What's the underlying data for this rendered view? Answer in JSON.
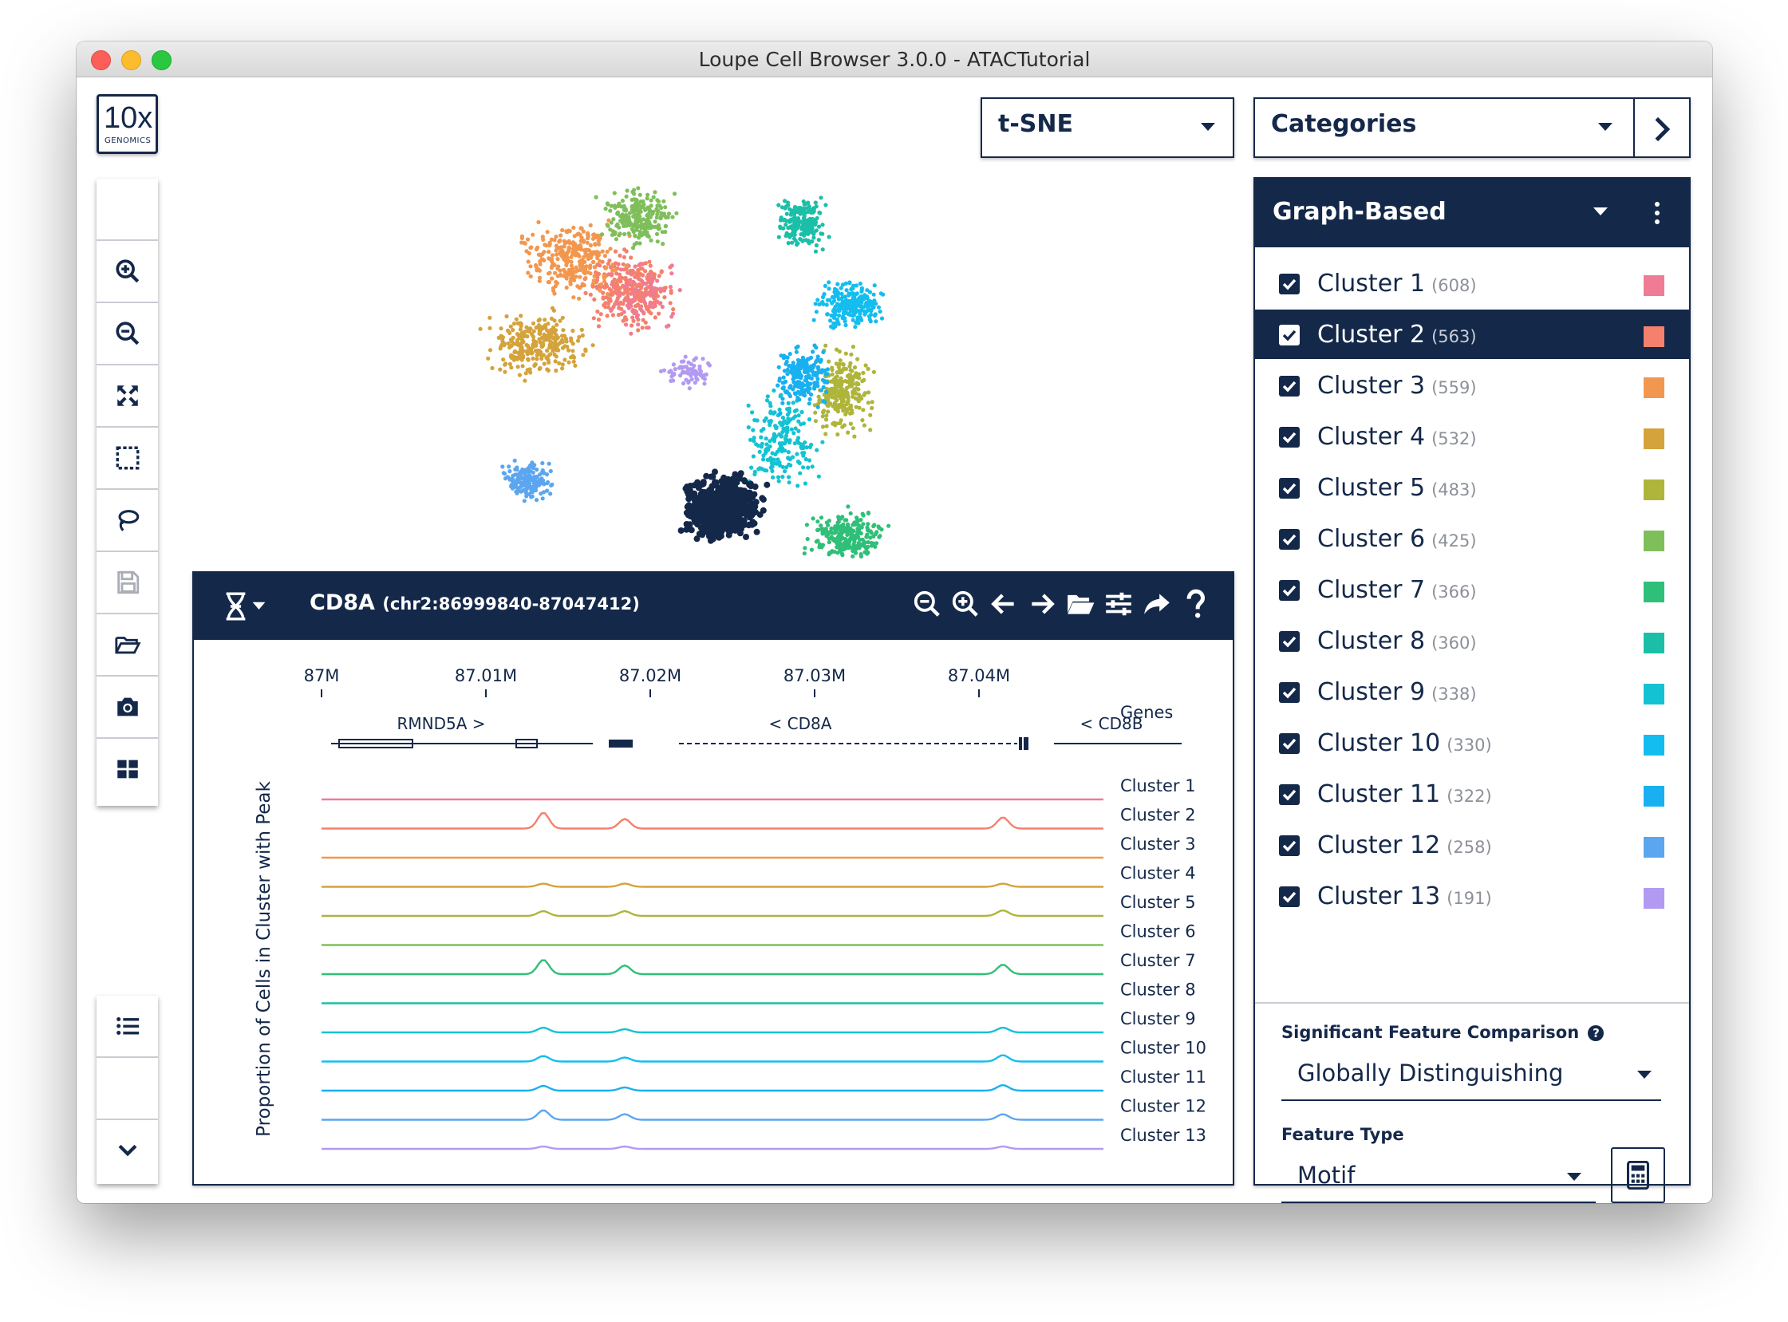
{
  "window": {
    "title": "Loupe Cell Browser 3.0.0 - ATACTutorial"
  },
  "logo": {
    "main": "10x",
    "sub": "GENOMICS"
  },
  "toolbar": {
    "tools": [
      {
        "name": "pointer-icon"
      },
      {
        "name": "zoom-in-icon"
      },
      {
        "name": "zoom-out-icon"
      },
      {
        "name": "fit-view-icon"
      },
      {
        "name": "box-select-icon"
      },
      {
        "name": "lasso-icon"
      },
      {
        "name": "save-icon"
      },
      {
        "name": "open-folder-icon"
      },
      {
        "name": "camera-icon"
      },
      {
        "name": "layout-grid-icon"
      }
    ],
    "bottom": [
      {
        "name": "list-icon"
      },
      {
        "name": "area-chart-icon"
      },
      {
        "name": "chevron-down-icon"
      }
    ]
  },
  "projection": {
    "selected": "t-SNE"
  },
  "category_select": {
    "selected": "Categories"
  },
  "cluster_panel": {
    "title": "Graph-Based",
    "clusters": [
      {
        "label": "Cluster 1",
        "count": "(608)",
        "color": "#f07b95",
        "selected": false
      },
      {
        "label": "Cluster 2",
        "count": "(563)",
        "color": "#f4806d",
        "selected": true
      },
      {
        "label": "Cluster 3",
        "count": "(559)",
        "color": "#f2974f",
        "selected": false
      },
      {
        "label": "Cluster 4",
        "count": "(532)",
        "color": "#d4a33b",
        "selected": false
      },
      {
        "label": "Cluster 5",
        "count": "(483)",
        "color": "#aeb53a",
        "selected": false
      },
      {
        "label": "Cluster 6",
        "count": "(425)",
        "color": "#7fbf5b",
        "selected": false
      },
      {
        "label": "Cluster 7",
        "count": "(366)",
        "color": "#2fbf78",
        "selected": false
      },
      {
        "label": "Cluster 8",
        "count": "(360)",
        "color": "#1bbfa8",
        "selected": false
      },
      {
        "label": "Cluster 9",
        "count": "(338)",
        "color": "#13c3d3",
        "selected": false
      },
      {
        "label": "Cluster 10",
        "count": "(330)",
        "color": "#14bdf0",
        "selected": false
      },
      {
        "label": "Cluster 11",
        "count": "(322)",
        "color": "#18b0f0",
        "selected": false
      },
      {
        "label": "Cluster 12",
        "count": "(258)",
        "color": "#5ca6ef",
        "selected": false
      },
      {
        "label": "Cluster 13",
        "count": "(191)",
        "color": "#b29af2",
        "selected": false
      }
    ]
  },
  "feature_comparison": {
    "label": "Significant Feature Comparison",
    "help_icon": "?",
    "value": "Globally Distinguishing",
    "type_label": "Feature Type",
    "type_value": "Motif"
  },
  "track": {
    "gene": "CD8A",
    "location": "(chr2:86999840-87047412)",
    "x_ticks": [
      "87M",
      "87.01M",
      "87.02M",
      "87.03M",
      "87.04M"
    ],
    "y_label": "Proportion of Cells in Cluster with Peak",
    "genes_label": "Genes",
    "genes": [
      {
        "label": "RMND5A >"
      },
      {
        "label": "< CD8A"
      },
      {
        "label": "< CD8B"
      }
    ],
    "track_labels": [
      "Cluster 1",
      "Cluster 2",
      "Cluster 3",
      "Cluster 4",
      "Cluster 5",
      "Cluster 6",
      "Cluster 7",
      "Cluster 8",
      "Cluster 9",
      "Cluster 10",
      "Cluster 11",
      "Cluster 12",
      "Cluster 13"
    ]
  }
}
